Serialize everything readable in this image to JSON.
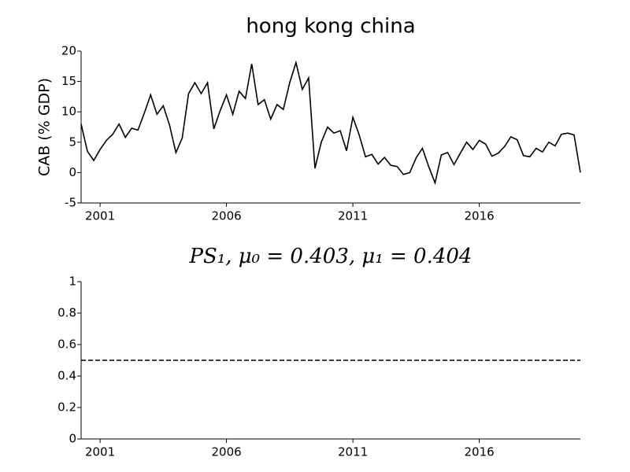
{
  "chart_data": [
    {
      "type": "line",
      "title": "hong kong china",
      "ylabel": "CAB (% GDP)",
      "x": [
        2000.25,
        2000.5,
        2000.75,
        2001,
        2001.25,
        2001.5,
        2001.75,
        2002,
        2002.25,
        2002.5,
        2002.75,
        2003,
        2003.25,
        2003.5,
        2003.75,
        2004,
        2004.25,
        2004.5,
        2004.75,
        2005,
        2005.25,
        2005.5,
        2005.75,
        2006,
        2006.25,
        2006.5,
        2006.75,
        2007,
        2007.25,
        2007.5,
        2007.75,
        2008,
        2008.25,
        2008.5,
        2008.75,
        2009,
        2009.25,
        2009.5,
        2009.75,
        2010,
        2010.25,
        2010.5,
        2010.75,
        2011,
        2011.25,
        2011.5,
        2011.75,
        2012,
        2012.25,
        2012.5,
        2012.75,
        2013,
        2013.25,
        2013.5,
        2013.75,
        2014,
        2014.25,
        2014.5,
        2014.75,
        2015,
        2015.25,
        2015.5,
        2015.75,
        2016,
        2016.25,
        2016.5,
        2016.75,
        2017,
        2017.25,
        2017.5,
        2017.75,
        2018,
        2018.25,
        2018.5,
        2018.75,
        2019,
        2019.25,
        2019.5,
        2019.75,
        2020
      ],
      "series": [
        {
          "color": "#000000",
          "values": [
            8,
            3.5,
            2,
            3.8,
            5.3,
            6.3,
            8,
            5.8,
            7.3,
            7,
            9.8,
            12.8,
            9.6,
            11,
            7.8,
            3.3,
            5.7,
            13,
            14.8,
            13,
            14.8,
            7.2,
            10.2,
            12.8,
            9.6,
            13.4,
            12.2,
            17.9,
            11.2,
            12,
            8.8,
            11.2,
            10.4,
            14.8,
            18.1,
            13.7,
            15.6,
            0.7,
            5,
            7.5,
            6.5,
            6.9,
            3.6,
            9.1,
            6.2,
            2.6,
            3,
            1.4,
            2.5,
            1.2,
            1,
            -0.3,
            0,
            2.4,
            4,
            1,
            -1.7,
            2.9,
            3.3,
            1.3,
            3.2,
            5,
            3.8,
            5.3,
            4.7,
            2.7,
            3.2,
            4.3,
            5.9,
            5.4,
            2.8,
            2.6,
            4,
            3.4,
            5,
            4.4,
            6.3,
            6.5,
            6.2,
            0
          ]
        }
      ],
      "xlim": [
        2000.25,
        2020
      ],
      "xticks": [
        2001,
        2006,
        2011,
        2016
      ],
      "ylim": [
        -5,
        20
      ],
      "yticks": [
        -5,
        0,
        5,
        10,
        15,
        20
      ]
    },
    {
      "type": "line",
      "title": "PS₁, μ₀ = 0.403, μ₁ = 0.404",
      "x": [
        2000.25,
        2020
      ],
      "series": [
        {
          "color": "#000000",
          "dashed": true,
          "values": [
            0.5,
            0.5
          ]
        }
      ],
      "xlim": [
        2000.25,
        2020
      ],
      "xticks": [
        2001,
        2006,
        2011,
        2016
      ],
      "ylim": [
        0,
        1
      ],
      "yticks": [
        0,
        0.2,
        0.4,
        0.6,
        0.8,
        1
      ]
    }
  ]
}
